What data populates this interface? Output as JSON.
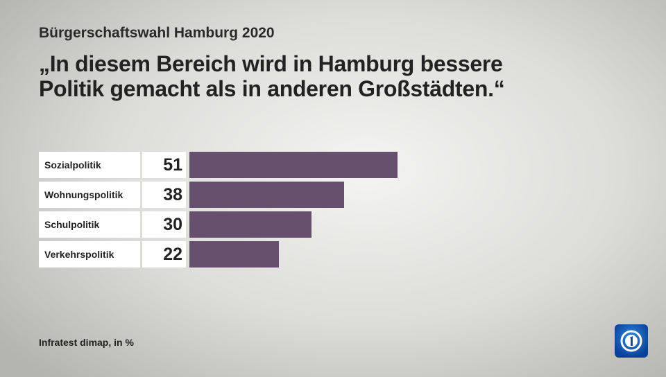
{
  "chart_data": {
    "type": "bar",
    "subtitle": "Bürgerschaftswahl Hamburg 2020",
    "title": "„In diesem Bereich wird in Hamburg bessere Politik gemacht als in anderen Großstädten.“",
    "categories": [
      "Sozialpolitik",
      "Wohnungspolitik",
      "Schulpolitik",
      "Verkehrspolitik"
    ],
    "values": [
      51,
      38,
      30,
      22
    ],
    "color": "#67506e",
    "source": "Infratest dimap, in %"
  }
}
